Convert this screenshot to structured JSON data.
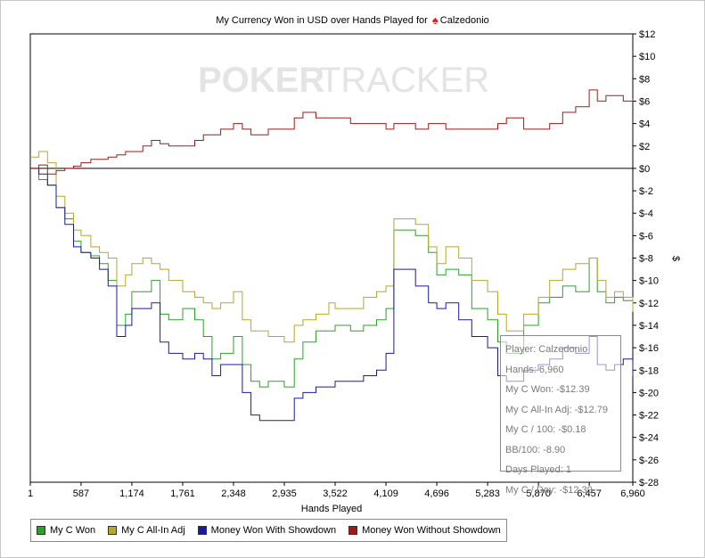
{
  "title": {
    "prefix": "My Currency Won in USD over Hands Played for",
    "player": "Calzedonio"
  },
  "watermark": {
    "part1": "POKER",
    "part2": "TRACKER"
  },
  "chart_data": {
    "type": "line",
    "title": "My Currency Won in USD over Hands Played for Calzedonio",
    "xlabel": "Hands Played",
    "ylabel": "$",
    "xlim": [
      1,
      6960
    ],
    "ylim": [
      -28,
      12
    ],
    "xticks": [
      "1",
      "587",
      "1,174",
      "1,761",
      "2,348",
      "2,935",
      "3,522",
      "4,109",
      "4,696",
      "5,283",
      "5,870",
      "6,457",
      "6,960"
    ],
    "yticks": [
      "$12",
      "$10",
      "$8",
      "$6",
      "$4",
      "$2",
      "$0",
      "$-2",
      "$-4",
      "$-6",
      "$-8",
      "$-10",
      "$-12",
      "$-14",
      "$-16",
      "$-18",
      "$-20",
      "$-22",
      "$-24",
      "$-26",
      "$-28"
    ],
    "grid": false,
    "legend_position": "bottom",
    "series": [
      {
        "name": "My C Won",
        "color": "#2ca02c",
        "x": [
          1,
          100,
          200,
          300,
          400,
          500,
          587,
          700,
          800,
          900,
          1000,
          1100,
          1174,
          1300,
          1400,
          1500,
          1600,
          1761,
          1900,
          2000,
          2100,
          2200,
          2348,
          2450,
          2550,
          2650,
          2750,
          2935,
          3050,
          3150,
          3300,
          3450,
          3522,
          3700,
          3850,
          4000,
          4109,
          4200,
          4300,
          4450,
          4600,
          4696,
          4800,
          4950,
          5100,
          5283,
          5400,
          5500,
          5700,
          5870,
          6000,
          6150,
          6300,
          6457,
          6550,
          6650,
          6750,
          6850,
          6960
        ],
        "y": [
          0,
          -1.0,
          -1.5,
          -3.5,
          -4.5,
          -6.5,
          -7.5,
          -7.8,
          -8.5,
          -10.0,
          -14.0,
          -13.0,
          -11.0,
          -11.0,
          -10.0,
          -13.0,
          -13.5,
          -12.5,
          -13.5,
          -15.0,
          -17.0,
          -16.5,
          -15.0,
          -17.5,
          -19.0,
          -19.5,
          -19.0,
          -19.5,
          -17.0,
          -15.5,
          -14.5,
          -14.5,
          -14.0,
          -14.5,
          -14.0,
          -13.5,
          -12.5,
          -5.5,
          -5.5,
          -6.0,
          -7.5,
          -9.5,
          -9.0,
          -9.5,
          -12.5,
          -13.5,
          -15.5,
          -16.5,
          -14.0,
          -12.0,
          -11.5,
          -10.5,
          -11.0,
          -8.0,
          -11.0,
          -12.0,
          -11.5,
          -11.8,
          -12.39
        ]
      },
      {
        "name": "My C All-In Adj",
        "color": "#b5a82a",
        "x": [
          1,
          100,
          200,
          300,
          400,
          500,
          587,
          700,
          800,
          900,
          1000,
          1100,
          1174,
          1300,
          1400,
          1500,
          1600,
          1761,
          1900,
          2000,
          2100,
          2200,
          2348,
          2450,
          2550,
          2650,
          2750,
          2935,
          3050,
          3150,
          3300,
          3450,
          3522,
          3700,
          3850,
          4000,
          4109,
          4200,
          4300,
          4450,
          4600,
          4696,
          4800,
          4950,
          5100,
          5283,
          5400,
          5500,
          5700,
          5870,
          6000,
          6150,
          6300,
          6457,
          6550,
          6650,
          6750,
          6850,
          6960
        ],
        "y": [
          1.0,
          1.5,
          0.5,
          -2.5,
          -4.0,
          -5.5,
          -6.0,
          -7.0,
          -7.5,
          -8.0,
          -10.5,
          -9.5,
          -8.5,
          -8.0,
          -8.5,
          -9.0,
          -10.0,
          -11.0,
          -11.5,
          -12.0,
          -12.5,
          -12.0,
          -11.0,
          -13.5,
          -14.5,
          -14.5,
          -15.0,
          -15.5,
          -14.0,
          -13.5,
          -13.0,
          -12.0,
          -12.5,
          -12.5,
          -11.5,
          -11.0,
          -10.5,
          -4.5,
          -4.5,
          -5.0,
          -7.0,
          -8.5,
          -7.0,
          -8.0,
          -10.0,
          -11.0,
          -13.0,
          -14.5,
          -13.0,
          -11.5,
          -10.0,
          -9.0,
          -8.5,
          -8.0,
          -10.0,
          -11.5,
          -11.0,
          -11.5,
          -12.79
        ]
      },
      {
        "name": "Money Won With Showdown",
        "color": "#1a1aa0",
        "x": [
          1,
          100,
          200,
          300,
          400,
          500,
          587,
          700,
          800,
          900,
          1000,
          1100,
          1174,
          1300,
          1400,
          1500,
          1600,
          1761,
          1900,
          2000,
          2100,
          2200,
          2348,
          2450,
          2550,
          2650,
          2750,
          2935,
          3050,
          3150,
          3300,
          3450,
          3522,
          3700,
          3850,
          4000,
          4109,
          4200,
          4300,
          4450,
          4600,
          4696,
          4800,
          4950,
          5100,
          5283,
          5400,
          5500,
          5700,
          5870,
          6000,
          6150,
          6300,
          6457,
          6550,
          6650,
          6750,
          6850,
          6960
        ],
        "y": [
          0,
          -0.5,
          -1.5,
          -3.5,
          -5.0,
          -7.0,
          -7.5,
          -8.0,
          -9.0,
          -10.5,
          -15.0,
          -14.0,
          -12.5,
          -12.5,
          -12.0,
          -15.5,
          -16.5,
          -17.0,
          -16.5,
          -17.0,
          -18.5,
          -17.5,
          -17.5,
          -20.0,
          -22.0,
          -22.5,
          -22.5,
          -22.5,
          -20.5,
          -20.0,
          -19.5,
          -19.5,
          -19.0,
          -19.0,
          -18.5,
          -18.0,
          -16.5,
          -9.0,
          -9.0,
          -10.5,
          -12.0,
          -12.5,
          -12.0,
          -13.5,
          -15.0,
          -16.0,
          -18.5,
          -19.0,
          -18.0,
          -17.5,
          -17.0,
          -16.0,
          -16.5,
          -15.0,
          -17.5,
          -18.0,
          -17.5,
          -17.0,
          -18.5
        ]
      },
      {
        "name": "Money Won Without Showdown",
        "color": "#a01a1a",
        "x": [
          1,
          100,
          200,
          300,
          400,
          500,
          587,
          700,
          800,
          900,
          1000,
          1100,
          1174,
          1300,
          1400,
          1500,
          1600,
          1761,
          1900,
          2000,
          2100,
          2200,
          2348,
          2450,
          2550,
          2650,
          2750,
          2935,
          3050,
          3150,
          3300,
          3450,
          3522,
          3700,
          3850,
          4000,
          4109,
          4200,
          4300,
          4450,
          4600,
          4696,
          4800,
          4950,
          5100,
          5283,
          5400,
          5500,
          5700,
          5870,
          6000,
          6150,
          6300,
          6457,
          6550,
          6650,
          6750,
          6850,
          6960
        ],
        "y": [
          0,
          0.3,
          -0.5,
          -0.2,
          0.0,
          0.2,
          0.5,
          0.8,
          0.8,
          1.0,
          1.2,
          1.5,
          1.5,
          2.0,
          2.5,
          2.2,
          2.0,
          2.0,
          2.5,
          3.0,
          3.0,
          3.5,
          4.0,
          3.5,
          3.0,
          3.0,
          3.5,
          3.5,
          4.5,
          5.0,
          4.5,
          4.5,
          4.5,
          4.0,
          4.0,
          4.0,
          3.5,
          4.0,
          4.0,
          3.5,
          4.0,
          4.0,
          3.5,
          3.5,
          3.5,
          3.5,
          4.0,
          4.5,
          3.5,
          3.5,
          4.0,
          5.0,
          5.5,
          7.0,
          6.0,
          6.5,
          6.5,
          6.0,
          6.2
        ]
      }
    ]
  },
  "tooltip": {
    "lines": [
      "Player: Calzedonio",
      "Hands: 6,960",
      "My C Won: -$12.39",
      "My C All-In Adj: -$12.79",
      "My C / 100: -$0.18",
      "BB/100: -8.90",
      "Days Played: 1",
      "My C / Day: -$12.39"
    ]
  }
}
